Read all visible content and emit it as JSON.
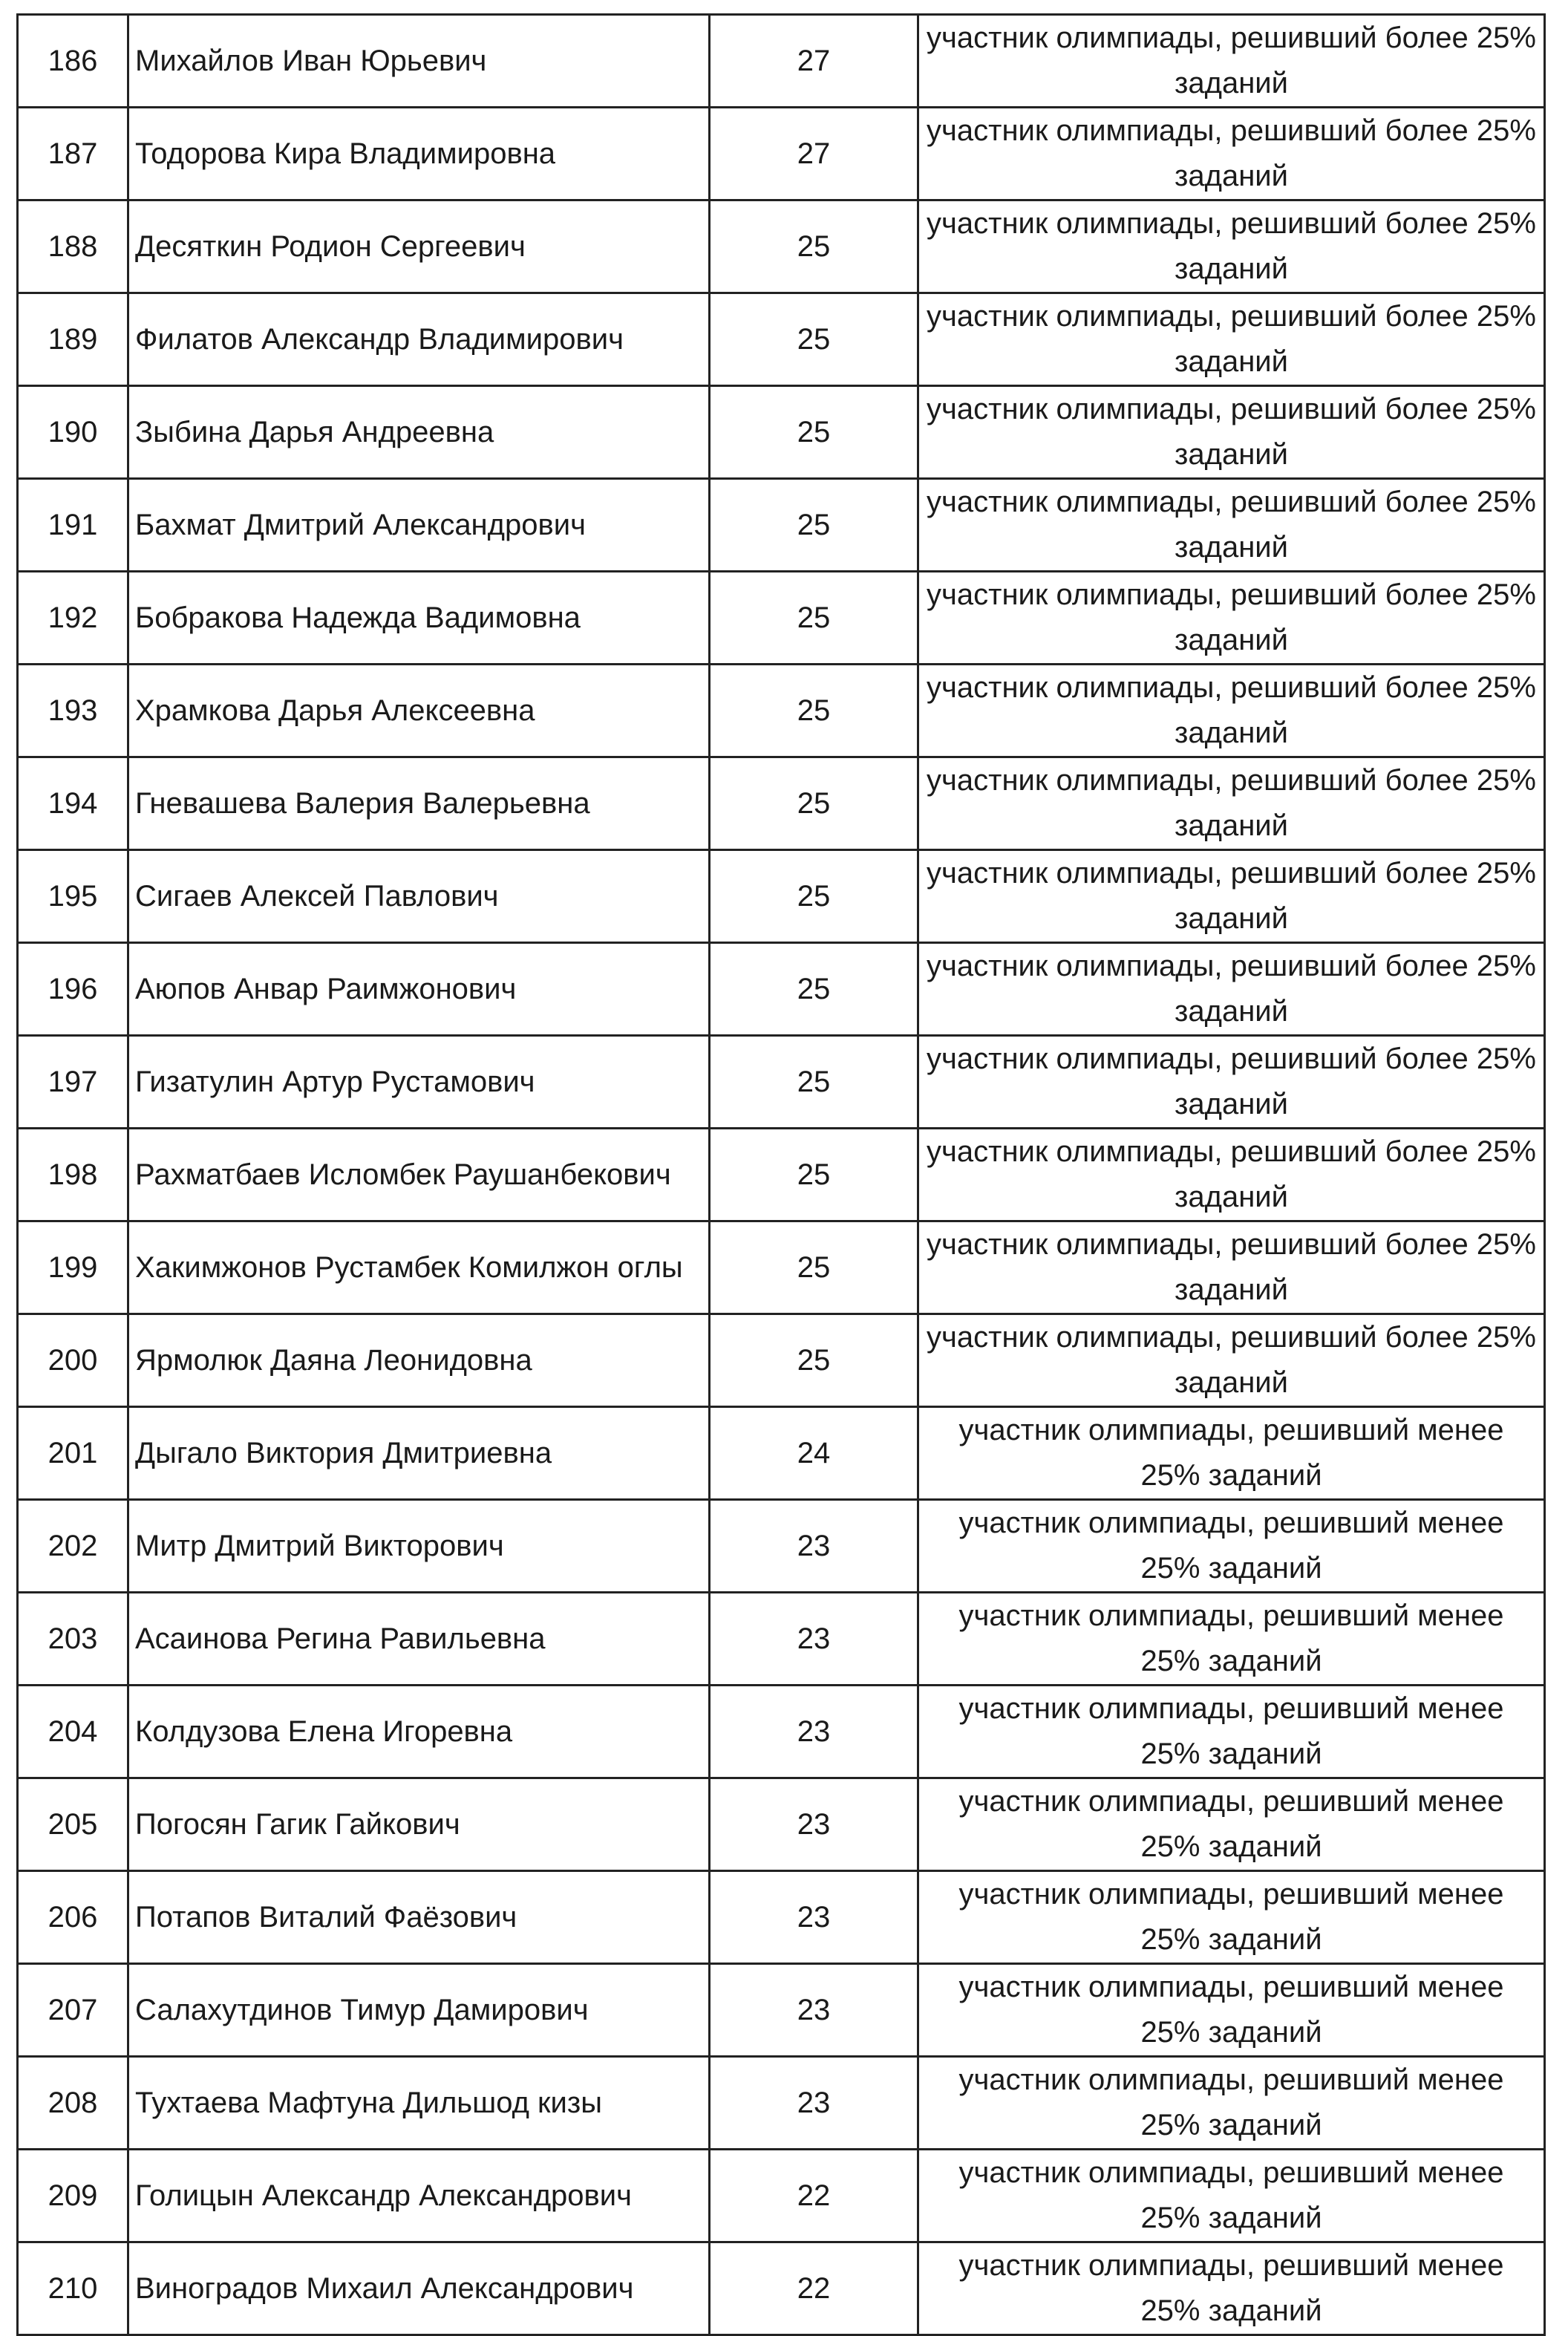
{
  "table": {
    "rows": [
      {
        "num": "186",
        "name": "Михайлов Иван Юрьевич",
        "score": "27",
        "status": "участник олимпиады, решивший более 25% заданий"
      },
      {
        "num": "187",
        "name": "Тодорова Кира Владимировна",
        "score": "27",
        "status": "участник олимпиады, решивший более 25% заданий"
      },
      {
        "num": "188",
        "name": "Десяткин Родион Сергеевич",
        "score": "25",
        "status": "участник олимпиады, решивший более 25% заданий"
      },
      {
        "num": "189",
        "name": "Филатов Александр Владимирович",
        "score": "25",
        "status": "участник олимпиады, решивший более 25% заданий"
      },
      {
        "num": "190",
        "name": "Зыбина Дарья Андреевна",
        "score": "25",
        "status": "участник олимпиады, решивший более 25% заданий"
      },
      {
        "num": "191",
        "name": "Бахмат Дмитрий Александрович",
        "score": "25",
        "status": "участник олимпиады, решивший более 25% заданий"
      },
      {
        "num": "192",
        "name": "Бобракова Надежда Вадимовна",
        "score": "25",
        "status": "участник олимпиады, решивший более 25% заданий"
      },
      {
        "num": "193",
        "name": "Храмкова Дарья Алексеевна",
        "score": "25",
        "status": "участник олимпиады, решивший более 25% заданий"
      },
      {
        "num": "194",
        "name": "Гневашева Валерия Валерьевна",
        "score": "25",
        "status": "участник олимпиады, решивший более 25% заданий"
      },
      {
        "num": "195",
        "name": "Сигаев Алексей Павлович",
        "score": "25",
        "status": "участник олимпиады, решивший более 25% заданий"
      },
      {
        "num": "196",
        "name": "Аюпов Анвар Раимжонович",
        "score": "25",
        "status": "участник олимпиады, решивший более 25% заданий"
      },
      {
        "num": "197",
        "name": "Гизатулин Артур Рустамович",
        "score": "25",
        "status": "участник олимпиады, решивший более 25% заданий"
      },
      {
        "num": "198",
        "name": "Рахматбаев Исломбек Раушанбекович",
        "score": "25",
        "status": "участник олимпиады, решивший более 25% заданий"
      },
      {
        "num": "199",
        "name": "Хакимжонов Рустамбек Комилжон оглы",
        "score": "25",
        "status": "участник олимпиады, решивший более 25% заданий"
      },
      {
        "num": "200",
        "name": "Ярмолюк Даяна Леонидовна",
        "score": "25",
        "status": "участник олимпиады, решивший более 25% заданий"
      },
      {
        "num": "201",
        "name": "Дыгало Виктория Дмитриевна",
        "score": "24",
        "status": "участник олимпиады, решивший менее 25% заданий"
      },
      {
        "num": "202",
        "name": "Митр Дмитрий Викторович",
        "score": "23",
        "status": "участник олимпиады, решивший менее 25% заданий"
      },
      {
        "num": "203",
        "name": "Асаинова Регина Равильевна",
        "score": "23",
        "status": "участник олимпиады, решивший менее 25% заданий"
      },
      {
        "num": "204",
        "name": "Колдузова Елена Игоревна",
        "score": "23",
        "status": "участник олимпиады, решивший менее 25% заданий"
      },
      {
        "num": "205",
        "name": "Погосян Гагик Гайкович",
        "score": "23",
        "status": "участник олимпиады, решивший менее 25% заданий"
      },
      {
        "num": "206",
        "name": "Потапов Виталий Фаёзович",
        "score": "23",
        "status": "участник олимпиады, решивший менее 25% заданий"
      },
      {
        "num": "207",
        "name": "Салахутдинов Тимур Дамирович",
        "score": "23",
        "status": "участник олимпиады, решивший менее 25% заданий"
      },
      {
        "num": "208",
        "name": "Тухтаева Мафтуна Дильшод кизы",
        "score": "23",
        "status": "участник олимпиады, решивший менее 25% заданий"
      },
      {
        "num": "209",
        "name": "Голицын Александр Александрович",
        "score": "22",
        "status": "участник олимпиады, решивший менее 25% заданий"
      },
      {
        "num": "210",
        "name": "Виноградов Михаил Александрович",
        "score": "22",
        "status": "участник олимпиады, решивший менее 25% заданий"
      }
    ]
  }
}
